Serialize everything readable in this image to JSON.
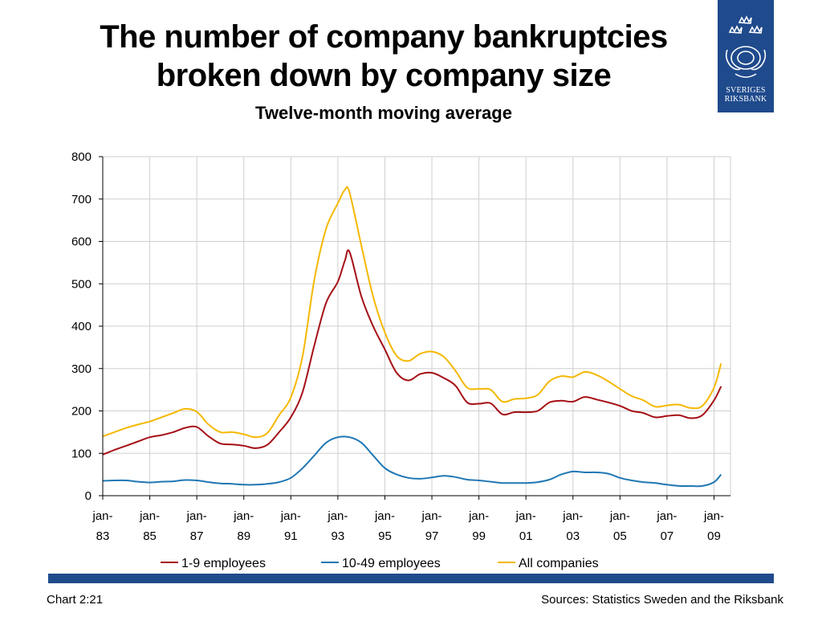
{
  "header": {
    "title_line1": "The number of company bankruptcies",
    "title_line2": "broken down by company size",
    "subtitle": "Twelve-month moving average"
  },
  "logo": {
    "line1": "SVERIGES",
    "line2": "RIKSBANK",
    "color": "#1f4a8c"
  },
  "footer": {
    "left": "Chart 2:21",
    "right": "Sources: Statistics Sweden and the Riksbank"
  },
  "chart_data": {
    "type": "line",
    "title": "The number of company bankruptcies broken down by company size",
    "subtitle": "Twelve-month moving average",
    "xlabel": "",
    "ylabel": "",
    "ylim": [
      0,
      800
    ],
    "yticks": [
      0,
      100,
      200,
      300,
      400,
      500,
      600,
      700,
      800
    ],
    "xlim": [
      1983,
      2009.7
    ],
    "xticks": [
      {
        "year": 1983,
        "line1": "jan-",
        "line2": "83"
      },
      {
        "year": 1985,
        "line1": "jan-",
        "line2": "85"
      },
      {
        "year": 1987,
        "line1": "jan-",
        "line2": "87"
      },
      {
        "year": 1989,
        "line1": "jan-",
        "line2": "89"
      },
      {
        "year": 1991,
        "line1": "jan-",
        "line2": "91"
      },
      {
        "year": 1993,
        "line1": "jan-",
        "line2": "93"
      },
      {
        "year": 1995,
        "line1": "jan-",
        "line2": "95"
      },
      {
        "year": 1997,
        "line1": "jan-",
        "line2": "97"
      },
      {
        "year": 1999,
        "line1": "jan-",
        "line2": "99"
      },
      {
        "year": 2001,
        "line1": "jan-",
        "line2": "01"
      },
      {
        "year": 2003,
        "line1": "jan-",
        "line2": "03"
      },
      {
        "year": 2005,
        "line1": "jan-",
        "line2": "05"
      },
      {
        "year": 2007,
        "line1": "jan-",
        "line2": "07"
      },
      {
        "year": 2009,
        "line1": "jan-",
        "line2": "09"
      }
    ],
    "grid": true,
    "legend": "bottom",
    "series": [
      {
        "name": "1-9 employees",
        "color": "#a50f15",
        "x": [
          1983,
          1983.5,
          1984,
          1984.5,
          1985,
          1985.5,
          1986,
          1986.5,
          1987,
          1987.5,
          1988,
          1988.5,
          1989,
          1989.5,
          1990,
          1990.5,
          1991,
          1991.5,
          1992,
          1992.5,
          1993,
          1993.3,
          1993.5,
          1994,
          1994.5,
          1995,
          1995.5,
          1996,
          1996.5,
          1997,
          1997.5,
          1998,
          1998.5,
          1999,
          1999.5,
          2000,
          2000.5,
          2001,
          2001.5,
          2002,
          2002.5,
          2003,
          2003.5,
          2004,
          2004.5,
          2005,
          2005.5,
          2006,
          2006.5,
          2007,
          2007.5,
          2008,
          2008.5,
          2009,
          2009.3
        ],
        "values": [
          97,
          108,
          118,
          128,
          138,
          143,
          150,
          160,
          162,
          140,
          123,
          121,
          118,
          112,
          120,
          150,
          185,
          245,
          355,
          455,
          505,
          555,
          575,
          470,
          400,
          345,
          290,
          272,
          287,
          290,
          278,
          260,
          220,
          217,
          218,
          192,
          197,
          197,
          200,
          220,
          224,
          222,
          233,
          227,
          220,
          212,
          200,
          195,
          185,
          188,
          190,
          183,
          190,
          225,
          258
        ]
      },
      {
        "name": "10-49 employees",
        "color": "#1f77b4",
        "x": [
          1983,
          1983.5,
          1984,
          1984.5,
          1985,
          1985.5,
          1986,
          1986.5,
          1987,
          1987.5,
          1988,
          1988.5,
          1989,
          1989.5,
          1990,
          1990.5,
          1991,
          1991.5,
          1992,
          1992.5,
          1993,
          1993.5,
          1994,
          1994.5,
          1995,
          1995.5,
          1996,
          1996.5,
          1997,
          1997.5,
          1998,
          1998.5,
          1999,
          1999.5,
          2000,
          2000.5,
          2001,
          2001.5,
          2002,
          2002.5,
          2003,
          2003.5,
          2004,
          2004.5,
          2005,
          2005.5,
          2006,
          2006.5,
          2007,
          2007.5,
          2008,
          2008.5,
          2009,
          2009.3
        ],
        "values": [
          35,
          36,
          36,
          33,
          31,
          33,
          34,
          37,
          36,
          32,
          29,
          28,
          26,
          26,
          28,
          32,
          42,
          65,
          95,
          125,
          138,
          138,
          125,
          95,
          65,
          50,
          42,
          40,
          43,
          47,
          44,
          38,
          36,
          33,
          30,
          30,
          30,
          32,
          38,
          50,
          57,
          55,
          55,
          52,
          42,
          36,
          32,
          30,
          26,
          23,
          23,
          23,
          32,
          50
        ]
      },
      {
        "name": "All companies",
        "color": "#f5b800",
        "x": [
          1983,
          1983.5,
          1984,
          1984.5,
          1985,
          1985.5,
          1986,
          1986.5,
          1987,
          1987.5,
          1988,
          1988.5,
          1989,
          1989.5,
          1990,
          1990.5,
          1991,
          1991.5,
          1992,
          1992.5,
          1993,
          1993.3,
          1993.5,
          1994,
          1994.5,
          1995,
          1995.5,
          1996,
          1996.5,
          1997,
          1997.5,
          1998,
          1998.5,
          1999,
          1999.5,
          2000,
          2000.5,
          2001,
          2001.5,
          2002,
          2002.5,
          2003,
          2003.5,
          2004,
          2004.5,
          2005,
          2005.5,
          2006,
          2006.5,
          2007,
          2007.5,
          2008,
          2008.5,
          2009,
          2009.3
        ],
        "values": [
          140,
          150,
          160,
          168,
          175,
          185,
          195,
          205,
          198,
          168,
          150,
          150,
          145,
          138,
          148,
          190,
          232,
          330,
          510,
          630,
          690,
          722,
          715,
          590,
          470,
          385,
          330,
          318,
          335,
          340,
          328,
          295,
          255,
          252,
          250,
          222,
          228,
          230,
          238,
          270,
          282,
          280,
          292,
          285,
          270,
          252,
          235,
          225,
          210,
          213,
          215,
          207,
          212,
          255,
          312
        ]
      }
    ]
  }
}
